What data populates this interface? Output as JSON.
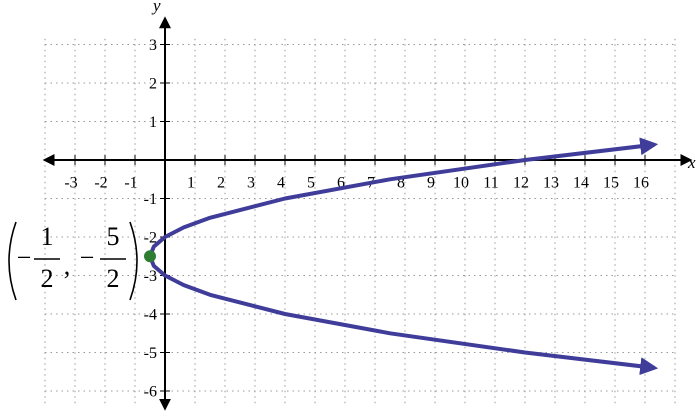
{
  "chart_data": {
    "type": "line",
    "x_label": "x",
    "y_label": "y",
    "xlim": [
      -4,
      17.5
    ],
    "ylim": [
      -6.4,
      3.8
    ],
    "xticks": [
      -3,
      -2,
      -1,
      1,
      2,
      3,
      4,
      5,
      6,
      7,
      8,
      9,
      10,
      11,
      12,
      13,
      14,
      15,
      16
    ],
    "yticks": [
      -6,
      -5,
      -4,
      -3,
      -2,
      -1,
      1,
      2,
      3
    ],
    "xgrid": [
      -4,
      -3,
      -2,
      -1,
      0,
      1,
      2,
      3,
      4,
      5,
      6,
      7,
      8,
      9,
      10,
      11,
      12,
      13,
      14,
      15,
      16,
      17
    ],
    "ygrid": [
      -6,
      -5,
      -4,
      -3,
      -2,
      -1,
      0,
      1,
      2,
      3
    ],
    "grid": true,
    "axis_color": "#000000",
    "grid_color": "#999999",
    "curve": {
      "color": "#3f3d99",
      "x": [
        16.32,
        12,
        7.5,
        4,
        1.5,
        0.625,
        0,
        -0.375,
        -0.5,
        -0.375,
        0,
        0.625,
        1.5,
        4,
        7.5,
        12,
        16.32
      ],
      "y": [
        -5.4,
        -5,
        -4.5,
        -4,
        -3.5,
        -3.25,
        -3,
        -2.75,
        -2.5,
        -2.25,
        -2,
        -1.75,
        -1.5,
        -1,
        -0.5,
        0,
        0.4
      ]
    },
    "vertex": {
      "x": -0.5,
      "y": -2.5,
      "color": "#2e7d32",
      "label": {
        "x_sign": "−",
        "x_numerator": "1",
        "x_denominator": "2",
        "separator": ",",
        "y_sign": "−",
        "y_numerator": "5",
        "y_denominator": "2"
      }
    }
  }
}
